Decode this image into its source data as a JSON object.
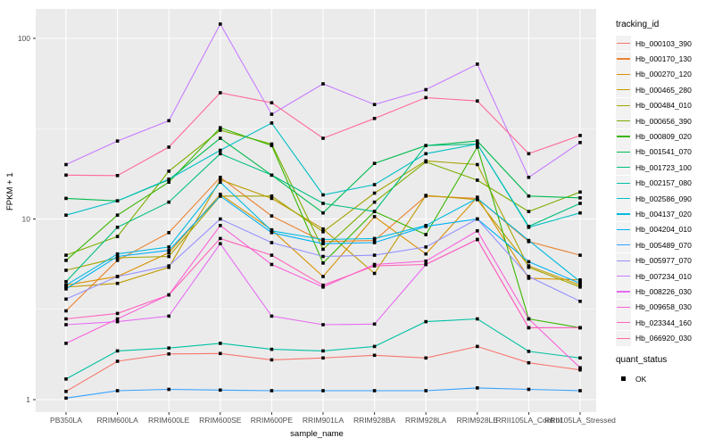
{
  "chart_data": {
    "type": "line",
    "title": "",
    "xlabel": "sample_name",
    "ylabel": "FPKM + 1",
    "y_scale": "log10",
    "y_ticks": [
      1,
      10,
      100
    ],
    "y_minor_ticks": [
      3.162,
      31.62
    ],
    "ylim": [
      0.85,
      145
    ],
    "grid": true,
    "legend_position": "right",
    "legend_title": "tracking_id",
    "quant_legend": {
      "title": "quant_status",
      "items": [
        {
          "label": "OK",
          "marker": "black-square"
        }
      ]
    },
    "point_marker": "black-square",
    "categories": [
      "PB350LA",
      "RRIM600LA",
      "RRIM600LE",
      "RRIM600SE",
      "RRIM600PE",
      "RRIM901LA",
      "RRIM928BA",
      "RRIM928LA",
      "RRIM928LE",
      "RRII105LA_Control",
      "RRII105LA_Stressed"
    ],
    "series": [
      {
        "name": "Hb_000103_390",
        "color": "#F8766D",
        "values": [
          1.11,
          1.63,
          1.79,
          1.8,
          1.66,
          1.7,
          1.76,
          1.7,
          1.97,
          1.6,
          1.46
        ]
      },
      {
        "name": "Hb_000170_130",
        "color": "#EA8331",
        "values": [
          3.1,
          5.9,
          8.4,
          17,
          10.4,
          7.5,
          7.6,
          13.4,
          13,
          7.5,
          6.3
        ]
      },
      {
        "name": "Hb_000270_120",
        "color": "#D89000",
        "values": [
          4.3,
          4.8,
          6.5,
          13.7,
          8.7,
          4.8,
          10.3,
          6.4,
          13.2,
          4.7,
          4.6
        ]
      },
      {
        "name": "Hb_000465_280",
        "color": "#C09B00",
        "values": [
          4.2,
          4.4,
          5.4,
          16.5,
          13,
          8.8,
          5,
          13.5,
          12.8,
          5.5,
          4.3
        ]
      },
      {
        "name": "Hb_000484_010",
        "color": "#A3A500",
        "values": [
          5.2,
          6.1,
          6.2,
          13.4,
          13.4,
          8.5,
          13.9,
          21,
          20,
          5.4,
          4.2
        ]
      },
      {
        "name": "Hb_000656_390",
        "color": "#7CAE00",
        "values": [
          6.3,
          8,
          18.4,
          31,
          26,
          6.8,
          12.4,
          20.7,
          16.4,
          11,
          14.1
        ]
      },
      {
        "name": "Hb_000809_020",
        "color": "#39B600",
        "values": [
          5.9,
          10.5,
          16,
          32,
          25.5,
          5.7,
          11,
          8.2,
          25,
          2.8,
          2.5
        ]
      },
      {
        "name": "Hb_001541_070",
        "color": "#00BB4E",
        "values": [
          13,
          12.6,
          16.5,
          28,
          17.5,
          10.8,
          20.3,
          25.5,
          27,
          13.4,
          13.1
        ]
      },
      {
        "name": "Hb_001723_100",
        "color": "#00BF7D",
        "values": [
          4.5,
          9,
          12.4,
          23,
          17.5,
          12.2,
          11,
          25.5,
          26,
          9.1,
          12.2
        ]
      },
      {
        "name": "Hb_002157_080",
        "color": "#00C1A3",
        "values": [
          1.3,
          1.86,
          1.93,
          2.05,
          1.9,
          1.86,
          1.97,
          2.7,
          2.8,
          1.85,
          1.7
        ]
      },
      {
        "name": "Hb_002586_090",
        "color": "#00BFC4",
        "values": [
          10.5,
          12.6,
          16.6,
          24,
          34,
          13.6,
          15.5,
          23,
          26,
          9,
          10.8
        ]
      },
      {
        "name": "Hb_004137_020",
        "color": "#00BAE0",
        "values": [
          4.3,
          6.4,
          7,
          16,
          8.6,
          7.7,
          7.8,
          9.2,
          13,
          7.6,
          4.5
        ]
      },
      {
        "name": "Hb_004204_010",
        "color": "#00B0F6",
        "values": [
          4.1,
          6.2,
          6.7,
          13.4,
          8.4,
          7.3,
          7.4,
          9.1,
          10,
          5.8,
          4.4
        ]
      },
      {
        "name": "Hb_005489_070",
        "color": "#35A2FF",
        "values": [
          1.02,
          1.12,
          1.14,
          1.13,
          1.12,
          1.12,
          1.12,
          1.12,
          1.16,
          1.14,
          1.12
        ]
      },
      {
        "name": "Hb_005977_070",
        "color": "#9590FF",
        "values": [
          3.6,
          4.8,
          5.5,
          10,
          7.4,
          6.2,
          6.3,
          7,
          10,
          4.8,
          3.5
        ]
      },
      {
        "name": "Hb_007234_010",
        "color": "#C77CFF",
        "values": [
          20,
          27,
          35,
          120,
          38,
          56,
          43,
          52,
          72,
          17,
          26.5
        ]
      },
      {
        "name": "Hb_008226_030",
        "color": "#E76BF3",
        "values": [
          2.6,
          2.7,
          2.9,
          7.3,
          2.9,
          2.6,
          2.62,
          5.6,
          7.7,
          2.5,
          2.5
        ]
      },
      {
        "name": "Hb_009658_030",
        "color": "#FA62DB",
        "values": [
          2.05,
          2.8,
          3.8,
          9.2,
          5.6,
          4.2,
          5.6,
          5.85,
          8.6,
          2.8,
          1.5
        ]
      },
      {
        "name": "Hb_023344_160",
        "color": "#FF62BC",
        "values": [
          2.8,
          3,
          3.8,
          7.8,
          6.3,
          4.3,
          5.5,
          5.6,
          7.7,
          2.5,
          2.5
        ]
      },
      {
        "name": "Hb_066920_030",
        "color": "#FF6A98",
        "values": [
          17.5,
          17.4,
          25,
          50,
          44,
          28,
          36,
          47,
          45,
          23,
          29
        ]
      }
    ]
  },
  "colors": {
    "panel_background": "#EBEBEB",
    "gridline": "#FFFFFF",
    "tick_text": "#4D4D4D",
    "axis_text": "#000000",
    "point": "#000000",
    "legend_key_background": "#F2F2F2"
  }
}
